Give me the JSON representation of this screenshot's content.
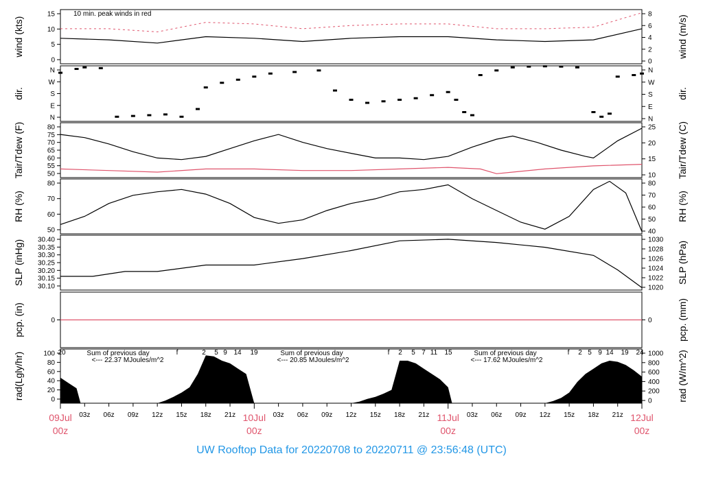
{
  "title": "UW Rooftop Data for 20220708  to  20220711 @ 23:56:48  (UTC)",
  "colors": {
    "accent_red": "#df536b",
    "title_blue": "#2297e6",
    "annotation_purple": "#9b30d9",
    "black": "#000000"
  },
  "x_axis": {
    "minor_ticks": [
      "03z",
      "06z",
      "09z",
      "12z",
      "15z",
      "18z",
      "21z",
      "03z",
      "06z",
      "09z",
      "12z",
      "15z",
      "18z",
      "21z",
      "03z",
      "06z",
      "09z",
      "12z",
      "15z",
      "18z",
      "21z"
    ],
    "major_ticks": [
      {
        "date": "09Jul",
        "hour": "00z"
      },
      {
        "date": "10Jul",
        "hour": "00z"
      },
      {
        "date": "11Jul",
        "hour": "00z"
      },
      {
        "date": "12Jul",
        "hour": "00z"
      }
    ]
  },
  "chart_data": [
    {
      "type": "line",
      "ylabel_left": "wind (kts)",
      "ylabel_right": "wind (m/s)",
      "annotation": "10 min. peak winds in red",
      "left_ticks": [
        "0",
        "5",
        "10",
        "15"
      ],
      "right_ticks": [
        "0",
        "2",
        "4",
        "6",
        "8"
      ],
      "ylim": [
        0,
        17
      ],
      "series": [
        {
          "name": "wind",
          "points": [
            [
              0,
              8
            ],
            [
              6,
              7.5
            ],
            [
              12,
              6.5
            ],
            [
              18,
              8.5
            ],
            [
              24,
              8
            ],
            [
              30,
              7
            ],
            [
              36,
              8
            ],
            [
              42,
              8.5
            ],
            [
              48,
              8.5
            ],
            [
              54,
              7.5
            ],
            [
              60,
              7
            ],
            [
              66,
              7.5
            ],
            [
              72,
              11
            ]
          ]
        },
        {
          "name": "10 min. peak winds",
          "points": [
            [
              0,
              11
            ],
            [
              6,
              11
            ],
            [
              12,
              10
            ],
            [
              18,
              13
            ],
            [
              24,
              12.5
            ],
            [
              30,
              11
            ],
            [
              36,
              12
            ],
            [
              42,
              12.5
            ],
            [
              48,
              12.5
            ],
            [
              54,
              11
            ],
            [
              60,
              11
            ],
            [
              66,
              11.5
            ],
            [
              72,
              16
            ]
          ]
        }
      ]
    },
    {
      "type": "scatter",
      "ylabel_left": "dir.",
      "ylabel_right": "dir.",
      "left_ticks": [
        "N",
        "E",
        "S",
        "W",
        "N"
      ],
      "right_ticks": [
        "N",
        "E",
        "S",
        "W",
        "N"
      ],
      "ylim": [
        0,
        360
      ],
      "points": [
        [
          0,
          315
        ],
        [
          2,
          340
        ],
        [
          3,
          350
        ],
        [
          5,
          345
        ],
        [
          7,
          30
        ],
        [
          9,
          35
        ],
        [
          11,
          40
        ],
        [
          13,
          45
        ],
        [
          15,
          30
        ],
        [
          17,
          80
        ],
        [
          18,
          220
        ],
        [
          20,
          250
        ],
        [
          22,
          270
        ],
        [
          24,
          290
        ],
        [
          26,
          310
        ],
        [
          29,
          320
        ],
        [
          32,
          330
        ],
        [
          34,
          200
        ],
        [
          36,
          140
        ],
        [
          38,
          120
        ],
        [
          40,
          130
        ],
        [
          42,
          140
        ],
        [
          44,
          150
        ],
        [
          46,
          170
        ],
        [
          48,
          190
        ],
        [
          49,
          140
        ],
        [
          50,
          60
        ],
        [
          51,
          40
        ],
        [
          52,
          300
        ],
        [
          54,
          330
        ],
        [
          56,
          350
        ],
        [
          58,
          355
        ],
        [
          60,
          357
        ],
        [
          62,
          355
        ],
        [
          64,
          350
        ],
        [
          66,
          60
        ],
        [
          67,
          30
        ],
        [
          68,
          50
        ],
        [
          69,
          290
        ],
        [
          71,
          300
        ],
        [
          72,
          310
        ]
      ]
    },
    {
      "type": "line",
      "ylabel_left": "Tair/Tdew (F)",
      "ylabel_right": "Tair/Tdew (C)",
      "left_ticks": [
        "50",
        "55",
        "60",
        "65",
        "70",
        "75",
        "80"
      ],
      "right_ticks": [
        "10",
        "15",
        "20",
        "25"
      ],
      "ylim": [
        48.5,
        83.5
      ],
      "series": [
        {
          "name": "Tair",
          "points": [
            [
              0,
              76
            ],
            [
              3,
              74
            ],
            [
              6,
              70
            ],
            [
              9,
              65
            ],
            [
              12,
              61
            ],
            [
              15,
              60
            ],
            [
              18,
              62
            ],
            [
              21,
              67
            ],
            [
              24,
              72
            ],
            [
              27,
              76
            ],
            [
              30,
              71
            ],
            [
              33,
              67
            ],
            [
              36,
              64
            ],
            [
              39,
              61
            ],
            [
              42,
              61
            ],
            [
              45,
              60
            ],
            [
              48,
              62
            ],
            [
              51,
              68
            ],
            [
              54,
              73
            ],
            [
              56,
              75
            ],
            [
              59,
              71
            ],
            [
              62,
              66
            ],
            [
              65,
              62
            ],
            [
              66,
              61
            ],
            [
              69,
              72
            ],
            [
              72,
              80
            ]
          ]
        },
        {
          "name": "Tdew",
          "points": [
            [
              0,
              54
            ],
            [
              6,
              53
            ],
            [
              12,
              52
            ],
            [
              18,
              54
            ],
            [
              24,
              54
            ],
            [
              30,
              53
            ],
            [
              36,
              53
            ],
            [
              42,
              54
            ],
            [
              48,
              55
            ],
            [
              52,
              54
            ],
            [
              54,
              51
            ],
            [
              56,
              52
            ],
            [
              60,
              54
            ],
            [
              66,
              56
            ],
            [
              72,
              57
            ]
          ]
        }
      ]
    },
    {
      "type": "line",
      "ylabel_left": "RH (%)",
      "ylabel_right": "RH (%)",
      "left_ticks": [
        "50",
        "60",
        "70",
        "80"
      ],
      "right_ticks": [
        "40",
        "50",
        "60",
        "70",
        "80"
      ],
      "ylim": [
        40,
        87
      ],
      "series": [
        {
          "name": "RH",
          "points": [
            [
              0,
              48
            ],
            [
              3,
              55
            ],
            [
              6,
              66
            ],
            [
              9,
              73
            ],
            [
              12,
              76
            ],
            [
              15,
              78
            ],
            [
              18,
              74
            ],
            [
              21,
              66
            ],
            [
              24,
              54
            ],
            [
              27,
              49
            ],
            [
              30,
              52
            ],
            [
              33,
              60
            ],
            [
              36,
              66
            ],
            [
              39,
              70
            ],
            [
              42,
              76
            ],
            [
              45,
              78
            ],
            [
              48,
              82
            ],
            [
              51,
              70
            ],
            [
              54,
              60
            ],
            [
              57,
              50
            ],
            [
              60,
              44
            ],
            [
              63,
              55
            ],
            [
              66,
              78
            ],
            [
              68,
              85
            ],
            [
              70,
              75
            ],
            [
              72,
              42
            ]
          ]
        }
      ]
    },
    {
      "type": "line",
      "ylabel_left": "SLP (inHg)",
      "ylabel_right": "SLP (hPa)",
      "left_ticks": [
        "30.10",
        "30.15",
        "30.20",
        "30.25",
        "30.30",
        "30.35",
        "30.40"
      ],
      "right_ticks": [
        "1020",
        "1022",
        "1024",
        "1026",
        "1028",
        "1030"
      ],
      "ylim": [
        30.085,
        30.425
      ],
      "series": [
        {
          "name": "SLP",
          "points": [
            [
              0,
              30.17
            ],
            [
              4,
              30.17
            ],
            [
              8,
              30.2
            ],
            [
              12,
              30.2
            ],
            [
              18,
              30.24
            ],
            [
              24,
              30.24
            ],
            [
              30,
              30.28
            ],
            [
              36,
              30.33
            ],
            [
              42,
              30.39
            ],
            [
              48,
              30.4
            ],
            [
              54,
              30.38
            ],
            [
              60,
              30.35
            ],
            [
              66,
              30.3
            ],
            [
              69,
              30.21
            ],
            [
              72,
              30.1
            ]
          ]
        }
      ]
    },
    {
      "type": "line",
      "ylabel_left": "pcp. (in)",
      "ylabel_right": "pcp. (mm)",
      "left_ticks": [
        "0"
      ],
      "right_ticks": [
        "0"
      ],
      "ylim": [
        -0.05,
        0.05
      ],
      "series": [
        {
          "name": "pcp",
          "points": [
            [
              0,
              0
            ],
            [
              72,
              0
            ]
          ]
        }
      ]
    },
    {
      "type": "area",
      "ylabel_left": "rad(Lgly/hr)",
      "ylabel_right": "rad (W/m^2)",
      "left_ticks": [
        "0",
        "20",
        "40",
        "60",
        "80",
        "100"
      ],
      "right_ticks": [
        "0",
        "200",
        "400",
        "600",
        "800",
        "1000"
      ],
      "ylim": [
        0,
        102
      ],
      "hour_labels": [
        "20",
        "f",
        "2",
        "5",
        "9",
        "14",
        "19",
        "f",
        "2",
        "5",
        "7",
        "11",
        "15",
        "f",
        "2",
        "5",
        "9",
        "14",
        "19",
        "24"
      ],
      "daily_sums": [
        {
          "title": "Sum of previous day",
          "value": "<--- 22.37 MJoules/m^2"
        },
        {
          "title": "Sum of previous day",
          "value": "<--- 20.85 MJoules/m^2"
        },
        {
          "title": "Sum of previous day",
          "value": "<--- 17.62 MJoules/m^2"
        }
      ],
      "points": [
        [
          0,
          48
        ],
        [
          1,
          38
        ],
        [
          2,
          28
        ],
        [
          2.5,
          0
        ],
        [
          5,
          0
        ],
        [
          12,
          0
        ],
        [
          13,
          5
        ],
        [
          14,
          12
        ],
        [
          15,
          20
        ],
        [
          16,
          30
        ],
        [
          17,
          55
        ],
        [
          18,
          90
        ],
        [
          19,
          88
        ],
        [
          20,
          80
        ],
        [
          21,
          75
        ],
        [
          22,
          65
        ],
        [
          23,
          55
        ],
        [
          24,
          0
        ],
        [
          25.5,
          0
        ],
        [
          36,
          0
        ],
        [
          37,
          3
        ],
        [
          38,
          8
        ],
        [
          39,
          12
        ],
        [
          40,
          18
        ],
        [
          41,
          25
        ],
        [
          42,
          80
        ],
        [
          43,
          80
        ],
        [
          44,
          75
        ],
        [
          45,
          65
        ],
        [
          46,
          55
        ],
        [
          47,
          45
        ],
        [
          48,
          30
        ],
        [
          48.5,
          0
        ],
        [
          49,
          0
        ],
        [
          60,
          0
        ],
        [
          61,
          4
        ],
        [
          62,
          10
        ],
        [
          63,
          20
        ],
        [
          64,
          40
        ],
        [
          65,
          55
        ],
        [
          66,
          65
        ],
        [
          67,
          75
        ],
        [
          68,
          80
        ],
        [
          69,
          78
        ],
        [
          70,
          72
        ],
        [
          71,
          62
        ],
        [
          72,
          50
        ]
      ]
    }
  ]
}
